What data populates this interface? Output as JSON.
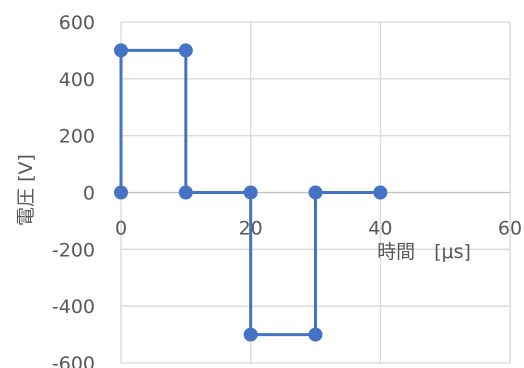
{
  "chart_data": {
    "type": "scatter",
    "title": "",
    "xlabel": "時間　[μs]",
    "ylabel": "電圧 [V]",
    "xlim": [
      0,
      60
    ],
    "ylim": [
      -600,
      600
    ],
    "x_ticks": [
      0,
      20,
      40,
      60
    ],
    "y_ticks": [
      600,
      400,
      200,
      0,
      -200,
      -400,
      -600
    ],
    "x_tick_labels": [
      "0",
      "20",
      "40",
      "60"
    ],
    "y_tick_labels": [
      "600",
      "400",
      "200",
      "0",
      "-200",
      "-400",
      "-600"
    ],
    "grid": true,
    "legend": "none",
    "series": [
      {
        "color": "#4472C4",
        "connect": "straight-lines-with-markers",
        "points": [
          {
            "x": 0,
            "y": 0
          },
          {
            "x": 0,
            "y": 500
          },
          {
            "x": 10,
            "y": 500
          },
          {
            "x": 10,
            "y": 0
          },
          {
            "x": 20,
            "y": 0
          },
          {
            "x": 20,
            "y": -500
          },
          {
            "x": 30,
            "y": -500
          },
          {
            "x": 30,
            "y": 0
          },
          {
            "x": 40,
            "y": 0
          }
        ]
      }
    ]
  },
  "colors": {
    "grid": "#D9D9D9",
    "zero_axis": "#BFBFBF",
    "text": "#595959"
  }
}
